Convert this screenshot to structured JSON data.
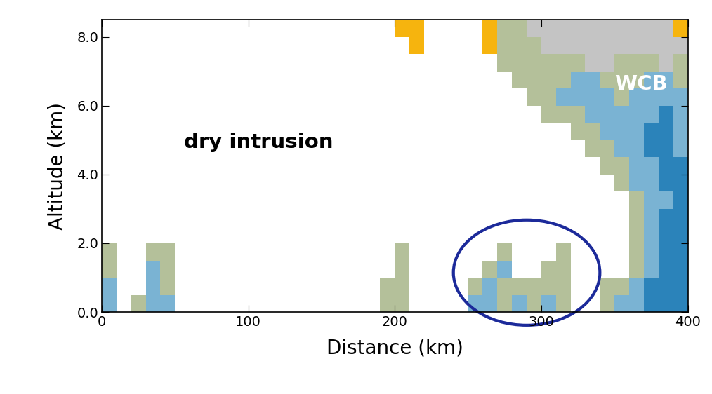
{
  "chart_data": {
    "type": "heatmap",
    "xlabel": "Distance (km)",
    "ylabel": "Altitude (km)",
    "annotations": [
      "dry intrusion",
      "WCB"
    ],
    "xlim": [
      0,
      400
    ],
    "xticks": [
      0,
      100,
      200,
      300,
      400
    ],
    "ylim": [
      0,
      8.5
    ],
    "yticks": [
      {
        "value": 0,
        "label": "0.0"
      },
      {
        "value": 2,
        "label": "2.0"
      },
      {
        "value": 4,
        "label": "4.0"
      },
      {
        "value": 6,
        "label": "6.0"
      },
      {
        "value": 8,
        "label": "8.0"
      }
    ],
    "colors": [
      "#ffffff",
      "#b4c09a",
      "#7ab3d3",
      "#2b83ba",
      "#f6b40e",
      "#c4c4c4"
    ],
    "x_edges": [
      0,
      10,
      20,
      30,
      40,
      50,
      60,
      70,
      80,
      90,
      100,
      110,
      120,
      130,
      140,
      150,
      160,
      170,
      180,
      190,
      200,
      210,
      220,
      230,
      240,
      250,
      260,
      270,
      280,
      290,
      300,
      310,
      320,
      330,
      340,
      350,
      360,
      370,
      380,
      390,
      400
    ],
    "y_edges": [
      0,
      0.5,
      1,
      1.5,
      2,
      2.5,
      3,
      3.5,
      4,
      4.5,
      5,
      5.5,
      6,
      6.5,
      7,
      7.5,
      8,
      8.5
    ],
    "cells": [
      [
        2,
        0,
        1,
        2,
        2,
        0,
        0,
        0,
        0,
        0,
        0,
        0,
        0,
        0,
        0,
        0,
        0,
        0,
        0,
        1,
        1,
        0,
        0,
        0,
        0,
        2,
        2,
        1,
        2,
        1,
        2,
        1,
        0,
        0,
        1,
        2,
        2,
        3,
        3,
        3
      ],
      [
        2,
        0,
        0,
        2,
        1,
        0,
        0,
        0,
        0,
        0,
        0,
        0,
        0,
        0,
        0,
        0,
        0,
        0,
        0,
        1,
        1,
        0,
        0,
        0,
        0,
        1,
        2,
        1,
        1,
        1,
        1,
        1,
        0,
        0,
        1,
        1,
        2,
        3,
        3,
        3
      ],
      [
        1,
        0,
        0,
        2,
        1,
        0,
        0,
        0,
        0,
        0,
        0,
        0,
        0,
        0,
        0,
        0,
        0,
        0,
        0,
        0,
        1,
        0,
        0,
        0,
        0,
        0,
        1,
        2,
        0,
        0,
        1,
        1,
        0,
        0,
        0,
        0,
        1,
        2,
        3,
        3
      ],
      [
        1,
        0,
        0,
        1,
        1,
        0,
        0,
        0,
        0,
        0,
        0,
        0,
        0,
        0,
        0,
        0,
        0,
        0,
        0,
        0,
        1,
        0,
        0,
        0,
        0,
        0,
        0,
        1,
        0,
        0,
        0,
        1,
        0,
        0,
        0,
        0,
        1,
        2,
        3,
        3
      ],
      [
        0,
        0,
        0,
        0,
        0,
        0,
        0,
        0,
        0,
        0,
        0,
        0,
        0,
        0,
        0,
        0,
        0,
        0,
        0,
        0,
        0,
        0,
        0,
        0,
        0,
        0,
        0,
        0,
        0,
        0,
        0,
        0,
        0,
        0,
        0,
        0,
        1,
        2,
        3,
        3
      ],
      [
        0,
        0,
        0,
        0,
        0,
        0,
        0,
        0,
        0,
        0,
        0,
        0,
        0,
        0,
        0,
        0,
        0,
        0,
        0,
        0,
        0,
        0,
        0,
        0,
        0,
        0,
        0,
        0,
        0,
        0,
        0,
        0,
        0,
        0,
        0,
        0,
        1,
        2,
        3,
        3
      ],
      [
        0,
        0,
        0,
        0,
        0,
        0,
        0,
        0,
        0,
        0,
        0,
        0,
        0,
        0,
        0,
        0,
        0,
        0,
        0,
        0,
        0,
        0,
        0,
        0,
        0,
        0,
        0,
        0,
        0,
        0,
        0,
        0,
        0,
        0,
        0,
        0,
        1,
        2,
        2,
        3
      ],
      [
        0,
        0,
        0,
        0,
        0,
        0,
        0,
        0,
        0,
        0,
        0,
        0,
        0,
        0,
        0,
        0,
        0,
        0,
        0,
        0,
        0,
        0,
        0,
        0,
        0,
        0,
        0,
        0,
        0,
        0,
        0,
        0,
        0,
        0,
        0,
        1,
        2,
        2,
        3,
        3
      ],
      [
        0,
        0,
        0,
        0,
        0,
        0,
        0,
        0,
        0,
        0,
        0,
        0,
        0,
        0,
        0,
        0,
        0,
        0,
        0,
        0,
        0,
        0,
        0,
        0,
        0,
        0,
        0,
        0,
        0,
        0,
        0,
        0,
        0,
        0,
        1,
        1,
        2,
        2,
        3,
        3
      ],
      [
        0,
        0,
        0,
        0,
        0,
        0,
        0,
        0,
        0,
        0,
        0,
        0,
        0,
        0,
        0,
        0,
        0,
        0,
        0,
        0,
        0,
        0,
        0,
        0,
        0,
        0,
        0,
        0,
        0,
        0,
        0,
        0,
        0,
        1,
        1,
        2,
        2,
        3,
        3,
        2
      ],
      [
        0,
        0,
        0,
        0,
        0,
        0,
        0,
        0,
        0,
        0,
        0,
        0,
        0,
        0,
        0,
        0,
        0,
        0,
        0,
        0,
        0,
        0,
        0,
        0,
        0,
        0,
        0,
        0,
        0,
        0,
        0,
        0,
        1,
        1,
        2,
        2,
        2,
        3,
        3,
        2
      ],
      [
        0,
        0,
        0,
        0,
        0,
        0,
        0,
        0,
        0,
        0,
        0,
        0,
        0,
        0,
        0,
        0,
        0,
        0,
        0,
        0,
        0,
        0,
        0,
        0,
        0,
        0,
        0,
        0,
        0,
        0,
        1,
        1,
        1,
        2,
        2,
        2,
        2,
        2,
        3,
        2
      ],
      [
        0,
        0,
        0,
        0,
        0,
        0,
        0,
        0,
        0,
        0,
        0,
        0,
        0,
        0,
        0,
        0,
        0,
        0,
        0,
        0,
        0,
        0,
        0,
        0,
        0,
        0,
        0,
        0,
        0,
        1,
        1,
        2,
        2,
        2,
        2,
        1,
        2,
        2,
        2,
        2
      ],
      [
        0,
        0,
        0,
        0,
        0,
        0,
        0,
        0,
        0,
        0,
        0,
        0,
        0,
        0,
        0,
        0,
        0,
        0,
        0,
        0,
        0,
        0,
        0,
        0,
        0,
        0,
        0,
        0,
        1,
        1,
        1,
        1,
        2,
        2,
        1,
        1,
        1,
        2,
        2,
        1
      ],
      [
        0,
        0,
        0,
        0,
        0,
        0,
        0,
        0,
        0,
        0,
        0,
        0,
        0,
        0,
        0,
        0,
        0,
        0,
        0,
        0,
        0,
        0,
        0,
        0,
        0,
        0,
        0,
        1,
        1,
        1,
        1,
        1,
        1,
        5,
        5,
        1,
        1,
        1,
        5,
        1
      ],
      [
        0,
        0,
        0,
        0,
        0,
        0,
        0,
        0,
        0,
        0,
        0,
        0,
        0,
        0,
        0,
        0,
        0,
        0,
        0,
        0,
        0,
        4,
        0,
        0,
        0,
        0,
        4,
        1,
        1,
        1,
        5,
        5,
        5,
        5,
        5,
        5,
        5,
        5,
        5,
        5
      ],
      [
        0,
        0,
        0,
        0,
        0,
        0,
        0,
        0,
        0,
        0,
        0,
        0,
        0,
        0,
        0,
        0,
        0,
        0,
        0,
        0,
        4,
        4,
        0,
        0,
        0,
        0,
        4,
        1,
        1,
        5,
        5,
        5,
        5,
        5,
        5,
        5,
        5,
        5,
        5,
        4
      ]
    ]
  }
}
